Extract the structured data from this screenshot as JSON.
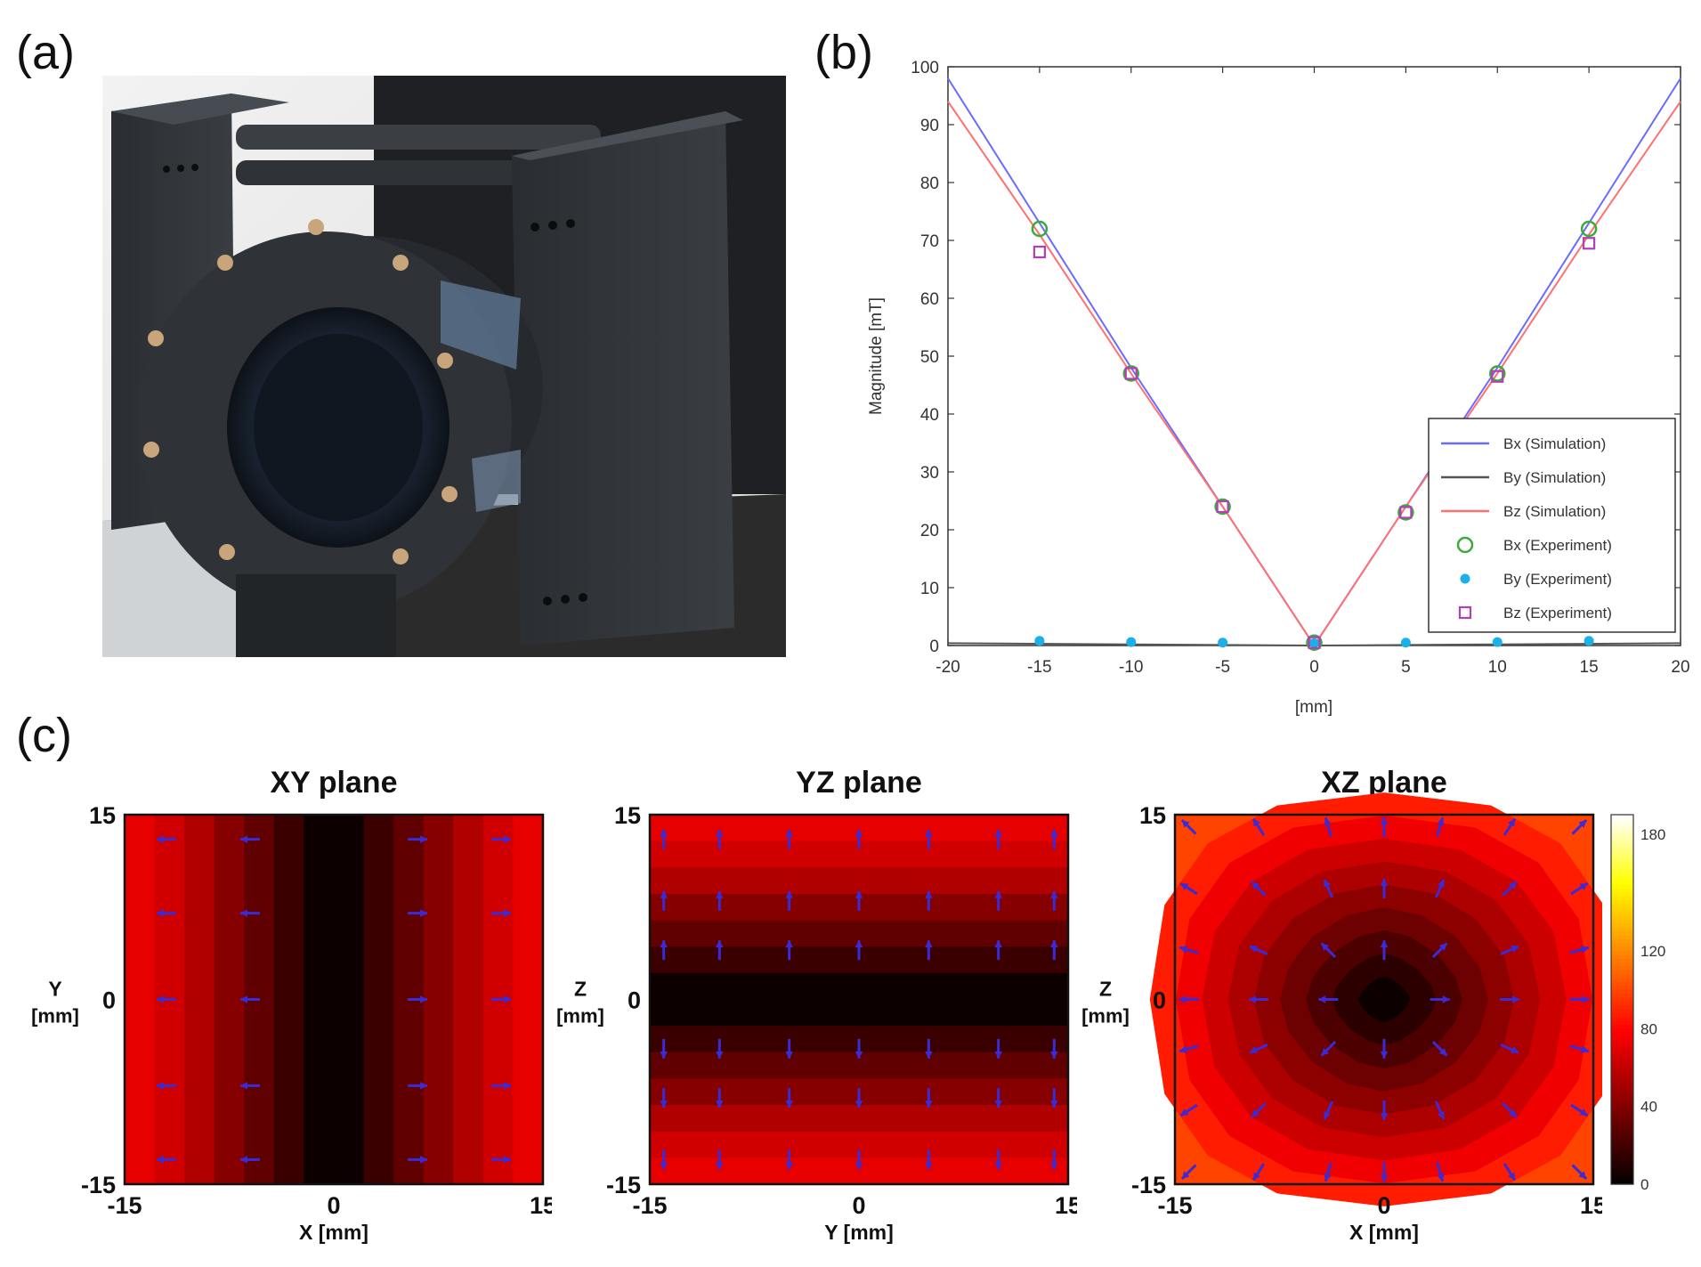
{
  "panels": {
    "a": "(a)",
    "b": "(b)",
    "c": "(c)"
  },
  "photo": {
    "description_icon": "magnetic-coil-apparatus-photo"
  },
  "chart_data": [
    {
      "type": "line",
      "panel": "(b)",
      "xlabel": "[mm]",
      "ylabel": "Magnitude [mT]",
      "xlim": [
        -20,
        20
      ],
      "ylim": [
        0,
        100
      ],
      "xticks": [
        -20,
        -15,
        -10,
        -5,
        0,
        5,
        10,
        15,
        20
      ],
      "yticks": [
        0,
        10,
        20,
        30,
        40,
        50,
        60,
        70,
        80,
        90,
        100
      ],
      "grid": false,
      "legend_position": "bottom-right",
      "series": [
        {
          "name": "Bx (Simulation)",
          "kind": "line",
          "color": "#6b6bff",
          "x": [
            -20,
            -15,
            -10,
            -5,
            0,
            5,
            10,
            15,
            20
          ],
          "y": [
            98,
            73,
            48,
            24,
            0,
            24,
            48,
            73,
            98
          ]
        },
        {
          "name": "By (Simulation)",
          "kind": "line",
          "color": "#555555",
          "x": [
            -20,
            -10,
            0,
            10,
            20
          ],
          "y": [
            0.4,
            0.2,
            0,
            0.2,
            0.4
          ]
        },
        {
          "name": "Bz (Simulation)",
          "kind": "line",
          "color": "#ff7070",
          "x": [
            -20,
            -15,
            -10,
            -5,
            0,
            5,
            10,
            15,
            20
          ],
          "y": [
            94,
            71,
            47,
            24,
            0,
            24,
            47,
            71,
            94
          ]
        },
        {
          "name": "Bx (Experiment)",
          "kind": "circle",
          "color": "#3caa3c",
          "x": [
            -15,
            -10,
            -5,
            0,
            5,
            10,
            15
          ],
          "y": [
            72,
            47,
            24,
            0.5,
            23,
            47,
            72
          ]
        },
        {
          "name": "By (Experiment)",
          "kind": "dot",
          "color": "#1ab0e8",
          "x": [
            -15,
            -10,
            -5,
            0,
            5,
            10,
            15
          ],
          "y": [
            0.8,
            0.6,
            0.5,
            0.4,
            0.5,
            0.6,
            0.8
          ]
        },
        {
          "name": "Bz (Experiment)",
          "kind": "square",
          "color": "#b040b0",
          "x": [
            -15,
            -10,
            -5,
            0,
            5,
            10,
            15
          ],
          "y": [
            68,
            47,
            24,
            0.5,
            23,
            46.5,
            69.5
          ]
        }
      ]
    },
    {
      "type": "heatmap",
      "title": "XY plane",
      "xlabel": "X [mm]",
      "ylabel_line1": "Y",
      "ylabel_line2": "[mm]",
      "xticks": [
        -15,
        0,
        15
      ],
      "yticks": [
        -15,
        0,
        15
      ],
      "pattern": "vertical-bands",
      "band_values": [
        72,
        65,
        55,
        42,
        30,
        18,
        4,
        4,
        18,
        30,
        42,
        55,
        65,
        72
      ],
      "arrow_rows": [
        13,
        7,
        0,
        -7,
        -13
      ],
      "arrow_cols": [
        -12,
        -6,
        6,
        12
      ]
    },
    {
      "type": "heatmap",
      "title": "YZ plane",
      "xlabel": "Y [mm]",
      "ylabel_line1": "Z",
      "ylabel_line2": "[mm]",
      "xticks": [
        -15,
        0,
        15
      ],
      "yticks": [
        -15,
        0,
        15
      ],
      "pattern": "horizontal-bands",
      "band_values": [
        72,
        65,
        55,
        42,
        30,
        18,
        4,
        4,
        18,
        30,
        42,
        55,
        65,
        72
      ],
      "arrow_rows": [
        13,
        8,
        4,
        -4,
        -8,
        -13
      ],
      "arrow_cols": [
        -14,
        -10,
        -5,
        0,
        5,
        10,
        14
      ]
    },
    {
      "type": "heatmap",
      "title": "XZ plane",
      "xlabel": "X [mm]",
      "ylabel_line1": "Z",
      "ylabel_line2": "[mm]",
      "xticks": [
        -15,
        0,
        15
      ],
      "yticks": [
        -15,
        0,
        15
      ],
      "pattern": "radial-diamond",
      "contour_levels": [
        100,
        88,
        75,
        64,
        54,
        44,
        34,
        24,
        14,
        4
      ],
      "arrow_rows": [
        14,
        9,
        4,
        0,
        -4,
        -9,
        -14
      ],
      "arrow_cols": [
        -14,
        -9,
        -4,
        0,
        4,
        9,
        14
      ]
    }
  ],
  "colorbar": {
    "ticks": [
      0,
      40,
      80,
      120,
      180
    ],
    "max": 190
  }
}
